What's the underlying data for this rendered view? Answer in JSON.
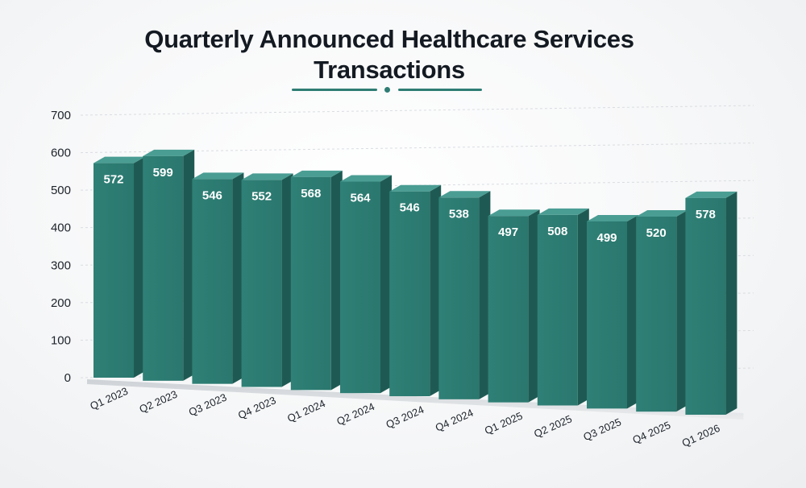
{
  "chart_data": {
    "type": "bar",
    "title": "Quarterly Announced Healthcare Services Transactions",
    "title_lines": [
      "Quarterly Announced Healthcare Services",
      "Transactions"
    ],
    "categories": [
      "Q1 2023",
      "Q2 2023",
      "Q3 2023",
      "Q4 2023",
      "Q1 2024",
      "Q2 2024",
      "Q3 2024",
      "Q4 2024",
      "Q1 2025",
      "Q2 2025",
      "Q3 2025",
      "Q4 2025",
      "Q1 2026"
    ],
    "values": [
      572,
      599,
      546,
      552,
      568,
      564,
      546,
      538,
      497,
      508,
      499,
      520,
      578
    ],
    "yticks": [
      0,
      100,
      200,
      300,
      400,
      500,
      600,
      700
    ],
    "ylim": [
      0,
      700
    ],
    "xlabel": "",
    "ylabel": "",
    "grid": true,
    "bar_color": "#2e7d74",
    "bar_side_color": "#1e5a53",
    "bar_top_color": "#4a9d93",
    "label_color": "#ffffff"
  }
}
